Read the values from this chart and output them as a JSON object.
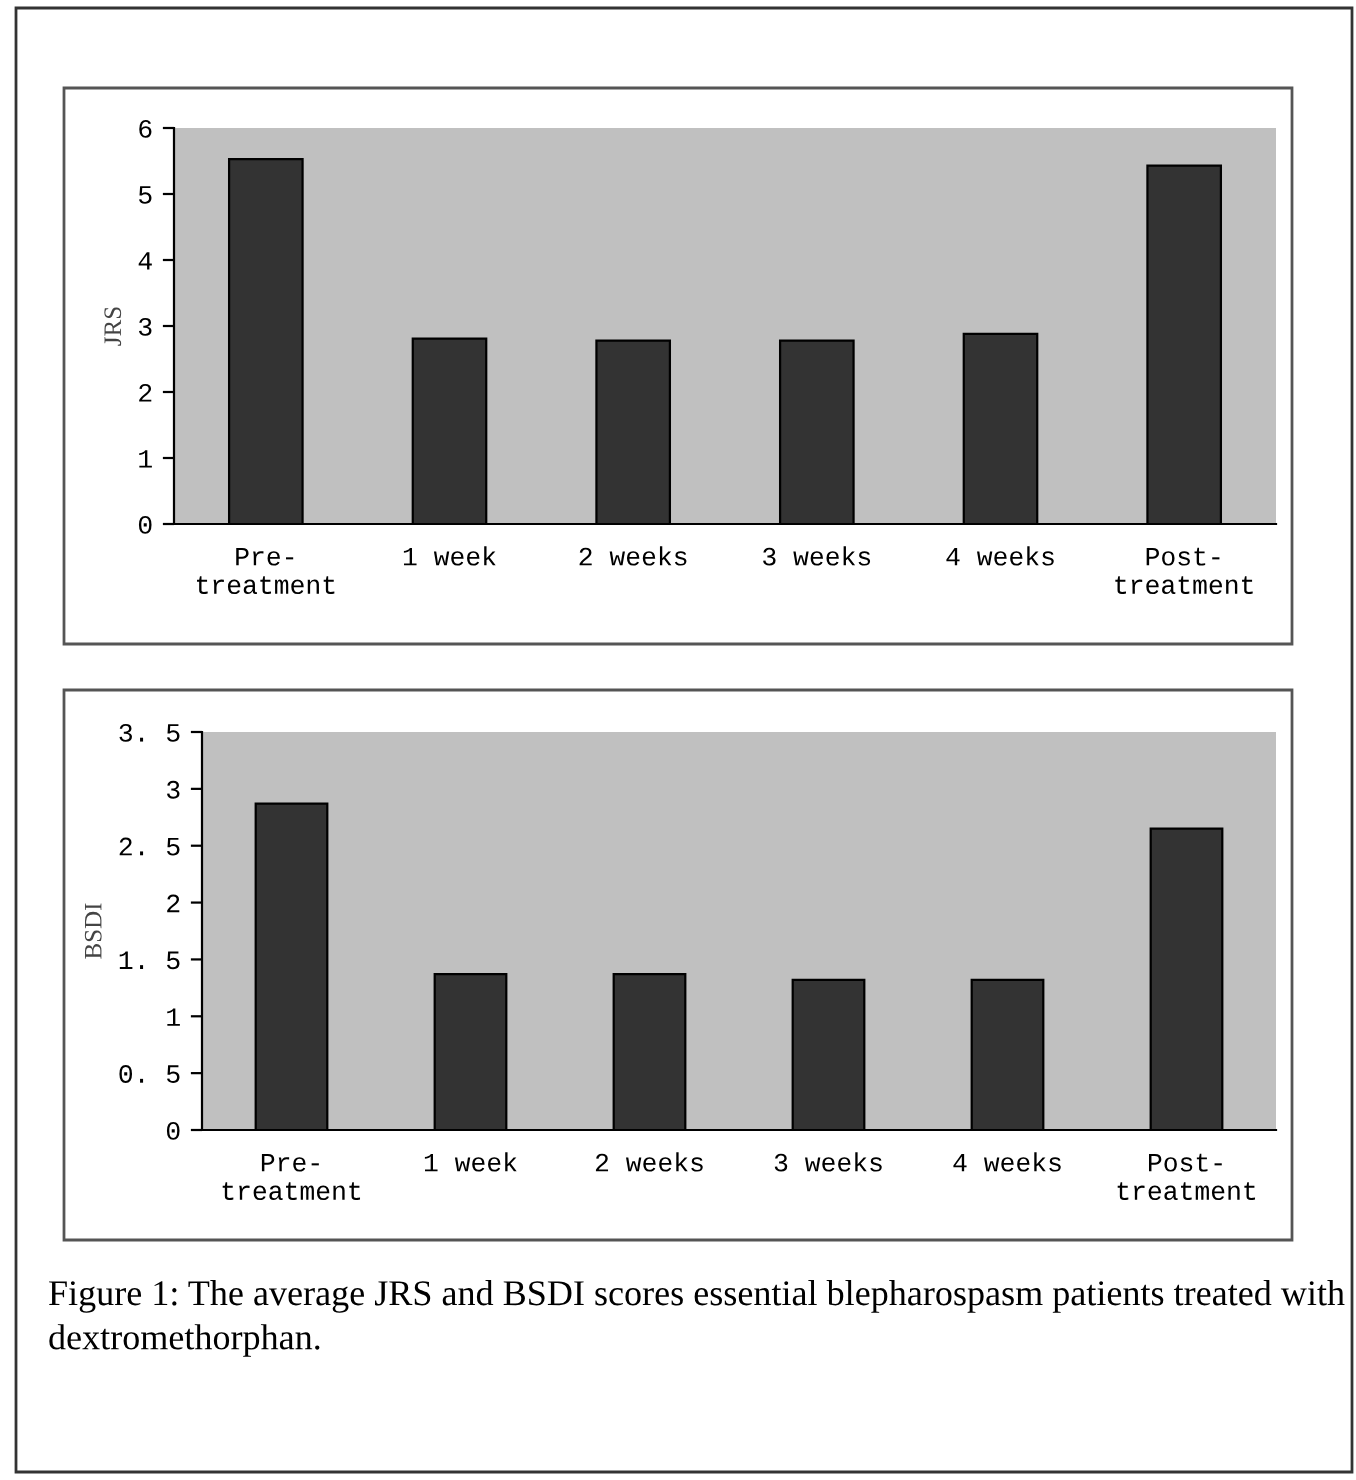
{
  "chart_data": [
    {
      "type": "bar",
      "ylabel": "JRS",
      "categories": [
        "Pre-\ntreatment",
        "1 week",
        "2 weeks",
        "3 weeks",
        "4 weeks",
        "Post-\ntreatment"
      ],
      "values": [
        5.53,
        2.81,
        2.78,
        2.78,
        2.88,
        5.43
      ],
      "color": "#333333",
      "ylim": [
        0,
        6
      ],
      "yticks": [
        0,
        1,
        2,
        3,
        4,
        5,
        6
      ],
      "grid": false
    },
    {
      "type": "bar",
      "ylabel": "BSDI",
      "categories": [
        "Pre-\ntreatment",
        "1 week",
        "2 weeks",
        "3 weeks",
        "4 weeks",
        "Post-\ntreatment"
      ],
      "values": [
        2.87,
        1.37,
        1.37,
        1.32,
        1.32,
        2.65
      ],
      "color": "#333333",
      "ylim": [
        0,
        3.5
      ],
      "yticks": [
        0,
        {
          "value": 0.5,
          "label": "0. 5"
        },
        1,
        {
          "value": 1.5,
          "label": "1. 5"
        },
        2,
        {
          "value": 2.5,
          "label": "2. 5"
        },
        3,
        {
          "value": 3.5,
          "label": "3. 5"
        }
      ],
      "grid": false,
      "annotations": [
        "Figure 1: The average JRS and BSDI scores essential blepharospasm patients treated with dextromethorphan."
      ]
    }
  ]
}
